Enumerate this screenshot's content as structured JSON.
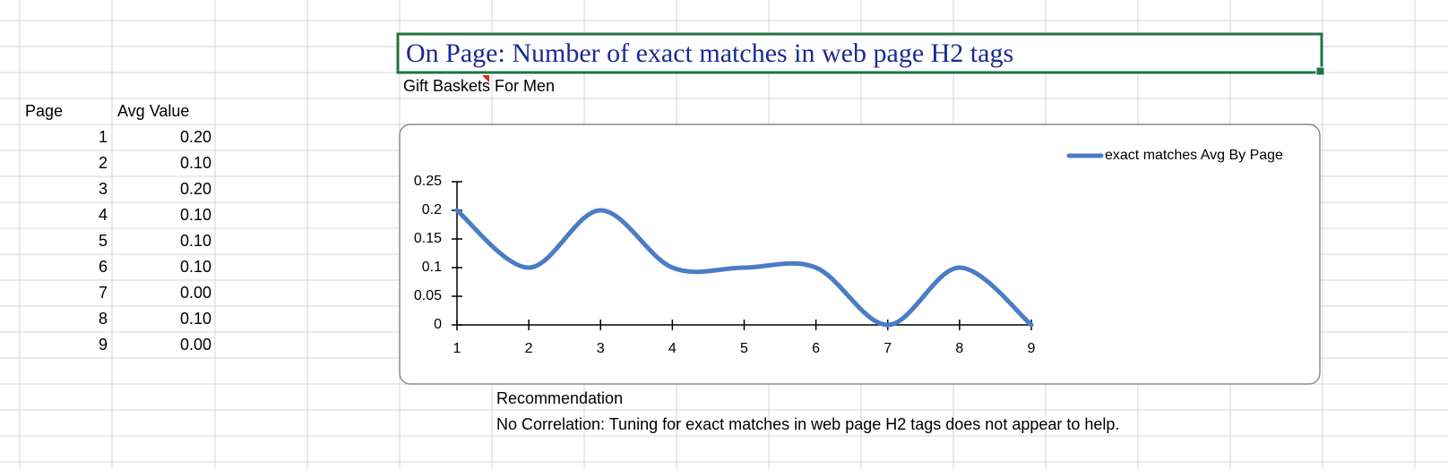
{
  "title": "On Page: Number of exact matches in web page H2 tags",
  "subtitle": "Gift Baskets For Men",
  "table": {
    "headers": [
      "Page",
      "Avg Value"
    ],
    "rows": [
      [
        1,
        "0.20"
      ],
      [
        2,
        "0.10"
      ],
      [
        3,
        "0.20"
      ],
      [
        4,
        "0.10"
      ],
      [
        5,
        "0.10"
      ],
      [
        6,
        "0.10"
      ],
      [
        7,
        "0.00"
      ],
      [
        8,
        "0.10"
      ],
      [
        9,
        "0.00"
      ]
    ]
  },
  "chart_data": {
    "type": "line",
    "x": [
      1,
      2,
      3,
      4,
      5,
      6,
      7,
      8,
      9
    ],
    "series": [
      {
        "name": "exact matches Avg By Page",
        "color": "#4a7cc7",
        "values": [
          0.2,
          0.1,
          0.2,
          0.1,
          0.1,
          0.1,
          0,
          0.1,
          0
        ]
      }
    ],
    "xlim": [
      1,
      9
    ],
    "xticks": [
      1,
      2,
      3,
      4,
      5,
      6,
      7,
      8,
      9
    ],
    "ylim": [
      0,
      0.25
    ],
    "yticks": [
      0,
      0.05,
      0.1,
      0.15,
      0.2,
      0.25
    ],
    "smooth": true,
    "legend": "top-right"
  },
  "recommendation": {
    "heading": "Recommendation",
    "text": "No Correlation: Tuning for exact matches in web page H2 tags does not appear to help."
  }
}
